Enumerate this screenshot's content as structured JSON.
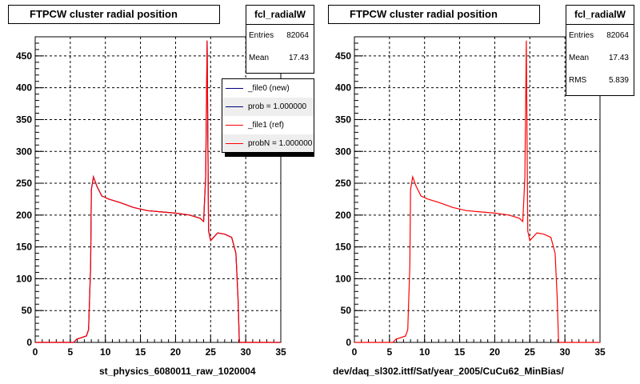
{
  "panels": [
    {
      "title": "FTPCW cluster radial position",
      "stats": {
        "name": "fcl_radialW",
        "rows": [
          {
            "k": "Entries",
            "v": "82064"
          },
          {
            "k": "Mean",
            "v": "17.43"
          }
        ]
      },
      "legend": [
        {
          "label": "_file0 (new)",
          "color": "#000080"
        },
        {
          "label": "prob = 1.000000",
          "color": "#000080"
        },
        {
          "label": "_file1 (ref)",
          "color": "#ff0000"
        },
        {
          "label": "probN = 1.000000",
          "color": "#ff0000"
        }
      ],
      "xlabel": "st_physics_6080011_raw_1020004"
    },
    {
      "title": "FTPCW cluster radial position",
      "stats": {
        "name": "fcl_radialW",
        "rows": [
          {
            "k": "Entries",
            "v": "82064"
          },
          {
            "k": "Mean",
            "v": "17.43"
          },
          {
            "k": "RMS",
            "v": "5.839"
          }
        ]
      },
      "xlabel": "dev/daq_sl302.ittf/Sat/year_2005/CuCu62_MinBias/"
    }
  ],
  "chart_data": [
    {
      "type": "line",
      "title": "FTPCW cluster radial position",
      "xlabel": "st_physics_6080011_raw_1020004",
      "ylabel": "",
      "xlim": [
        0,
        35
      ],
      "ylim": [
        0,
        480
      ],
      "x_ticks": [
        "0",
        "5",
        "10",
        "15",
        "20",
        "25",
        "30",
        "35"
      ],
      "y_ticks": [
        "0",
        "50",
        "100",
        "150",
        "200",
        "250",
        "300",
        "350",
        "400",
        "450"
      ],
      "grid": true,
      "legend_position": "top-right",
      "series": [
        {
          "name": "_file0 (new)",
          "color": "#000080",
          "x": [
            0,
            5.5,
            5.9,
            7.3,
            7.6,
            7.9,
            8.0,
            8.3,
            8.8,
            9.5,
            10.5,
            12,
            14,
            16,
            18,
            20,
            22,
            23.5,
            24.0,
            24.3,
            24.5,
            24.7,
            25,
            26,
            27,
            28,
            28.6,
            28.9,
            29.1,
            35
          ],
          "y": [
            0,
            0,
            5,
            10,
            20,
            120,
            240,
            260,
            245,
            230,
            225,
            220,
            212,
            207,
            205,
            203,
            200,
            195,
            190,
            260,
            474,
            175,
            160,
            172,
            170,
            165,
            140,
            70,
            0,
            0
          ]
        },
        {
          "name": "_file1 (ref)",
          "color": "#ff0000",
          "x": [
            0,
            5.5,
            5.9,
            7.3,
            7.6,
            7.9,
            8.0,
            8.3,
            8.8,
            9.5,
            10.5,
            12,
            14,
            16,
            18,
            20,
            22,
            23.5,
            24.0,
            24.3,
            24.5,
            24.7,
            25,
            26,
            27,
            28,
            28.6,
            28.9,
            29.1,
            35
          ],
          "y": [
            0,
            0,
            5,
            10,
            20,
            120,
            240,
            260,
            245,
            230,
            225,
            220,
            212,
            207,
            205,
            203,
            200,
            195,
            190,
            260,
            474,
            175,
            160,
            172,
            170,
            165,
            140,
            70,
            0,
            0
          ]
        }
      ]
    },
    {
      "type": "line",
      "title": "FTPCW cluster radial position",
      "xlabel": "dev/daq_sl302.ittf/Sat/year_2005/CuCu62_MinBias/",
      "ylabel": "",
      "xlim": [
        0,
        35
      ],
      "ylim": [
        0,
        480
      ],
      "x_ticks": [
        "0",
        "5",
        "10",
        "15",
        "20",
        "25",
        "30",
        "35"
      ],
      "y_ticks": [
        "0",
        "50",
        "100",
        "150",
        "200",
        "250",
        "300",
        "350",
        "400",
        "450"
      ],
      "grid": true,
      "series": [
        {
          "color": "#ff0000",
          "x": [
            0,
            5.5,
            5.9,
            7.3,
            7.6,
            7.9,
            8.0,
            8.3,
            8.8,
            9.5,
            10.5,
            12,
            14,
            16,
            18,
            20,
            22,
            23.5,
            24.0,
            24.3,
            24.5,
            24.7,
            25,
            26,
            27,
            28,
            28.6,
            28.9,
            29.1,
            35
          ],
          "y": [
            0,
            0,
            5,
            10,
            20,
            120,
            240,
            260,
            245,
            230,
            225,
            220,
            212,
            207,
            205,
            203,
            200,
            195,
            190,
            260,
            474,
            175,
            160,
            172,
            170,
            165,
            140,
            70,
            0,
            0
          ]
        }
      ]
    }
  ]
}
